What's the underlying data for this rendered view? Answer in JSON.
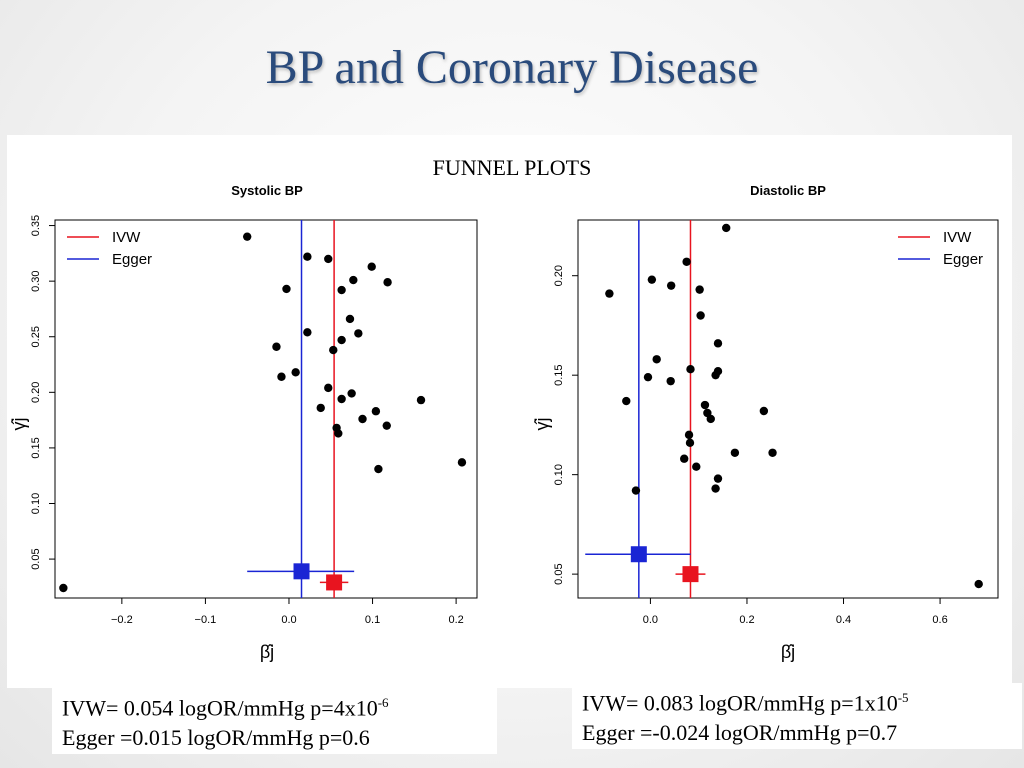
{
  "slide": {
    "title": "BP and Coronary Disease",
    "subtitle": "FUNNEL PLOTS"
  },
  "colors": {
    "ivw": "#e8141f",
    "egger": "#1a25d4",
    "title": "#2a4b7c"
  },
  "chart_data": [
    {
      "type": "scatter",
      "title": "Systolic BP",
      "xlabel": "β̂j",
      "ylabel": "γ̂j",
      "xlim": [
        -0.28,
        0.225
      ],
      "ylim": [
        0.015,
        0.355
      ],
      "xticks": [
        -0.2,
        -0.1,
        0.0,
        0.1,
        0.2
      ],
      "xtick_labels": [
        "−0.2",
        "−0.1",
        "0.0",
        "0.1",
        "0.2"
      ],
      "yticks": [
        0.05,
        0.1,
        0.15,
        0.2,
        0.25,
        0.3,
        0.35
      ],
      "ytick_labels": [
        "0.05",
        "0.10",
        "0.15",
        "0.20",
        "0.25",
        "0.30",
        "0.35"
      ],
      "legend": {
        "position": "top-left",
        "entries": [
          "IVW",
          "Egger"
        ]
      },
      "ivw": {
        "estimate": 0.054,
        "ci": [
          0.037,
          0.071
        ],
        "y": 0.029
      },
      "egger": {
        "estimate": 0.015,
        "ci": [
          -0.05,
          0.078
        ],
        "y": 0.039
      },
      "points": [
        [
          -0.27,
          0.024
        ],
        [
          -0.05,
          0.34
        ],
        [
          0.022,
          0.322
        ],
        [
          0.047,
          0.32
        ],
        [
          0.099,
          0.313
        ],
        [
          0.077,
          0.301
        ],
        [
          0.118,
          0.299
        ],
        [
          -0.003,
          0.293
        ],
        [
          0.063,
          0.292
        ],
        [
          0.073,
          0.266
        ],
        [
          0.022,
          0.254
        ],
        [
          0.083,
          0.253
        ],
        [
          0.063,
          0.247
        ],
        [
          -0.015,
          0.241
        ],
        [
          0.053,
          0.238
        ],
        [
          0.008,
          0.218
        ],
        [
          -0.009,
          0.214
        ],
        [
          0.047,
          0.204
        ],
        [
          0.075,
          0.199
        ],
        [
          0.063,
          0.194
        ],
        [
          0.158,
          0.193
        ],
        [
          0.038,
          0.186
        ],
        [
          0.104,
          0.183
        ],
        [
          0.088,
          0.176
        ],
        [
          0.117,
          0.17
        ],
        [
          0.057,
          0.168
        ],
        [
          0.059,
          0.163
        ],
        [
          0.207,
          0.137
        ],
        [
          0.107,
          0.131
        ]
      ]
    },
    {
      "type": "scatter",
      "title": "Diastolic BP",
      "xlabel": "β̂j",
      "ylabel": "γ̂j",
      "xlim": [
        -0.15,
        0.72
      ],
      "ylim": [
        0.038,
        0.228
      ],
      "xticks": [
        0.0,
        0.2,
        0.4,
        0.6
      ],
      "xtick_labels": [
        "0.0",
        "0.2",
        "0.4",
        "0.6"
      ],
      "yticks": [
        0.05,
        0.1,
        0.15,
        0.2
      ],
      "ytick_labels": [
        "0.05",
        "0.10",
        "0.15",
        "0.20"
      ],
      "legend": {
        "position": "top-right",
        "entries": [
          "IVW",
          "Egger"
        ]
      },
      "ivw": {
        "estimate": 0.083,
        "ci": [
          0.052,
          0.114
        ],
        "y": 0.05
      },
      "egger": {
        "estimate": -0.024,
        "ci": [
          -0.135,
          0.083
        ],
        "y": 0.06
      },
      "points": [
        [
          0.157,
          0.224
        ],
        [
          0.075,
          0.207
        ],
        [
          -0.085,
          0.191
        ],
        [
          0.003,
          0.198
        ],
        [
          0.043,
          0.195
        ],
        [
          0.102,
          0.193
        ],
        [
          0.104,
          0.18
        ],
        [
          0.14,
          0.166
        ],
        [
          0.013,
          0.158
        ],
        [
          0.083,
          0.153
        ],
        [
          0.14,
          0.152
        ],
        [
          0.135,
          0.15
        ],
        [
          -0.005,
          0.149
        ],
        [
          0.042,
          0.147
        ],
        [
          -0.05,
          0.137
        ],
        [
          0.113,
          0.135
        ],
        [
          0.118,
          0.131
        ],
        [
          0.125,
          0.128
        ],
        [
          0.235,
          0.132
        ],
        [
          0.08,
          0.12
        ],
        [
          0.082,
          0.116
        ],
        [
          0.175,
          0.111
        ],
        [
          0.253,
          0.111
        ],
        [
          0.07,
          0.108
        ],
        [
          0.095,
          0.104
        ],
        [
          0.14,
          0.098
        ],
        [
          0.135,
          0.093
        ],
        [
          -0.03,
          0.092
        ],
        [
          0.68,
          0.045
        ]
      ]
    }
  ],
  "notes": {
    "left": {
      "line1_prefix": "IVW=   0.054 logOR/mmHg p=4x10",
      "line1_exp": "-6",
      "line2": "Egger =0.015 logOR/mmHg p=0.6"
    },
    "right": {
      "line1_prefix": "IVW=   0.083 logOR/mmHg p=1x10",
      "line1_exp": "-5",
      "line2": "Egger =-0.024 logOR/mmHg p=0.7"
    }
  }
}
